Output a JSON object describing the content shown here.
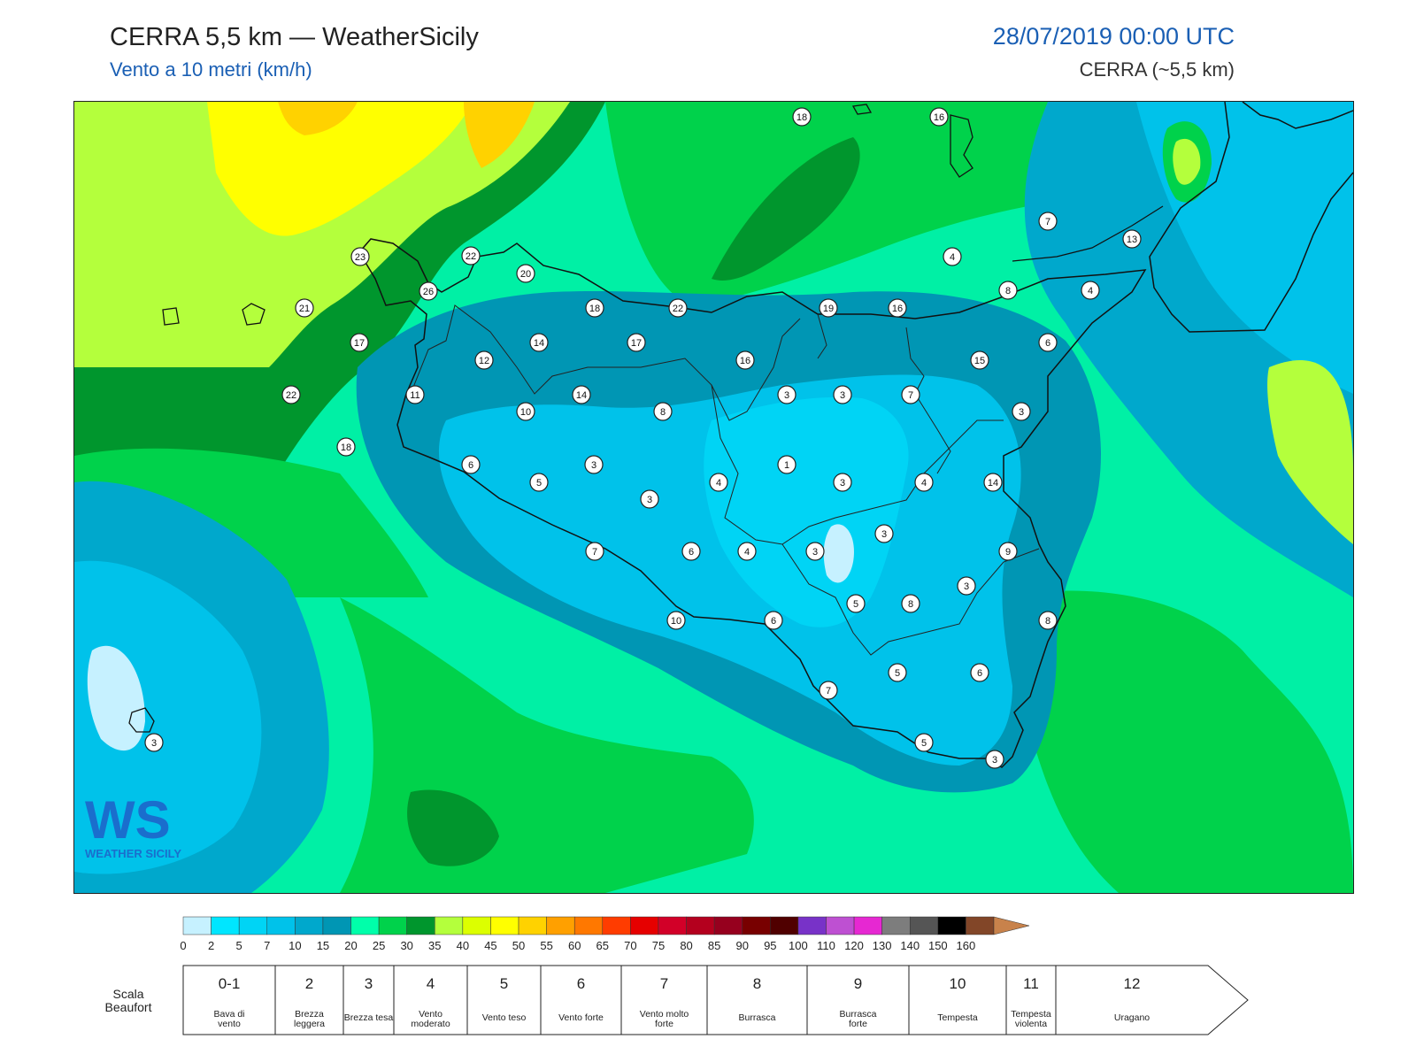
{
  "header": {
    "title": "CERRA 5,5 km — WeatherSicily",
    "subtitle": "Vento a 10 metri (km/h)",
    "datetime": "28/07/2019 00:00 UTC",
    "model": "CERRA (~5,5 km)"
  },
  "logo": {
    "text": "WEATHER SICILY",
    "letters": "WS"
  },
  "map": {
    "station_values": [
      {
        "id": "s1",
        "v": "18"
      },
      {
        "id": "s2",
        "v": "16"
      },
      {
        "id": "s3",
        "v": "23"
      },
      {
        "id": "s4",
        "v": "22"
      },
      {
        "id": "s5",
        "v": "20"
      },
      {
        "id": "s6",
        "v": "26"
      },
      {
        "id": "s7",
        "v": "21"
      },
      {
        "id": "s8",
        "v": "18"
      },
      {
        "id": "s9",
        "v": "22"
      },
      {
        "id": "s10",
        "v": "19"
      },
      {
        "id": "s11",
        "v": "16"
      },
      {
        "id": "s12",
        "v": "7"
      },
      {
        "id": "s13",
        "v": "13"
      },
      {
        "id": "s14",
        "v": "4"
      },
      {
        "id": "s15",
        "v": "8"
      },
      {
        "id": "s16",
        "v": "4"
      },
      {
        "id": "s17",
        "v": "17"
      },
      {
        "id": "s18",
        "v": "14"
      },
      {
        "id": "s19",
        "v": "12"
      },
      {
        "id": "s20",
        "v": "17"
      },
      {
        "id": "s21",
        "v": "16"
      },
      {
        "id": "s22",
        "v": "15"
      },
      {
        "id": "s23",
        "v": "6"
      },
      {
        "id": "s24",
        "v": "22"
      },
      {
        "id": "s25",
        "v": "11"
      },
      {
        "id": "s26",
        "v": "14"
      },
      {
        "id": "s27",
        "v": "10"
      },
      {
        "id": "s28",
        "v": "8"
      },
      {
        "id": "s29",
        "v": "3"
      },
      {
        "id": "s30",
        "v": "3"
      },
      {
        "id": "s31",
        "v": "7"
      },
      {
        "id": "s32",
        "v": "3"
      },
      {
        "id": "s33",
        "v": "18"
      },
      {
        "id": "s34",
        "v": "6"
      },
      {
        "id": "s35",
        "v": "3"
      },
      {
        "id": "s36",
        "v": "1"
      },
      {
        "id": "s37",
        "v": "5"
      },
      {
        "id": "s38",
        "v": "4"
      },
      {
        "id": "s39",
        "v": "3"
      },
      {
        "id": "s40",
        "v": "4"
      },
      {
        "id": "s41",
        "v": "14"
      },
      {
        "id": "s42",
        "v": "3"
      },
      {
        "id": "s43",
        "v": "3"
      },
      {
        "id": "s44",
        "v": "7"
      },
      {
        "id": "s45",
        "v": "6"
      },
      {
        "id": "s46",
        "v": "4"
      },
      {
        "id": "s47",
        "v": "3"
      },
      {
        "id": "s48",
        "v": "9"
      },
      {
        "id": "s49",
        "v": "3"
      },
      {
        "id": "s50",
        "v": "5"
      },
      {
        "id": "s51",
        "v": "8"
      },
      {
        "id": "s52",
        "v": "8"
      },
      {
        "id": "s53",
        "v": "10"
      },
      {
        "id": "s54",
        "v": "6"
      },
      {
        "id": "s55",
        "v": "5"
      },
      {
        "id": "s56",
        "v": "6"
      },
      {
        "id": "s57",
        "v": "7"
      },
      {
        "id": "s58",
        "v": "5"
      },
      {
        "id": "s59",
        "v": "3"
      },
      {
        "id": "s60",
        "v": "3"
      }
    ]
  },
  "colorbar": {
    "ticks": [
      "0",
      "2",
      "5",
      "7",
      "10",
      "15",
      "20",
      "25",
      "30",
      "35",
      "40",
      "45",
      "50",
      "55",
      "60",
      "65",
      "70",
      "75",
      "80",
      "85",
      "90",
      "95",
      "100",
      "110",
      "120",
      "130",
      "140",
      "150",
      "160"
    ],
    "colors": [
      "#c6f1ff",
      "#00e6ff",
      "#00d4f5",
      "#00c2ea",
      "#00a8cc",
      "#0096b4",
      "#00ffaa",
      "#00d24b",
      "#00962d",
      "#b4ff3c",
      "#dcff00",
      "#ffff00",
      "#ffd200",
      "#ffa000",
      "#ff7800",
      "#ff3c00",
      "#e60000",
      "#d20028",
      "#b4001e",
      "#96001e",
      "#780000",
      "#500000",
      "#7832c8",
      "#be50d2",
      "#e628d2",
      "#7d7d7d",
      "#555555",
      "#000000",
      "#824628",
      "#c8824b"
    ]
  },
  "beaufort": {
    "label": "Scala Beaufort",
    "classes": [
      {
        "num": "0-1",
        "desc": "Bava di vento"
      },
      {
        "num": "2",
        "desc": "Brezza leggera"
      },
      {
        "num": "3",
        "desc": "Brezza tesa"
      },
      {
        "num": "4",
        "desc": "Vento moderato"
      },
      {
        "num": "5",
        "desc": "Vento teso"
      },
      {
        "num": "6",
        "desc": "Vento forte"
      },
      {
        "num": "7",
        "desc": "Vento molto forte"
      },
      {
        "num": "8",
        "desc": "Burrasca"
      },
      {
        "num": "9",
        "desc": "Burrasca forte"
      },
      {
        "num": "10",
        "desc": "Tempesta"
      },
      {
        "num": "11",
        "desc": "Tempesta violenta"
      },
      {
        "num": "12",
        "desc": "Uragano"
      }
    ]
  }
}
